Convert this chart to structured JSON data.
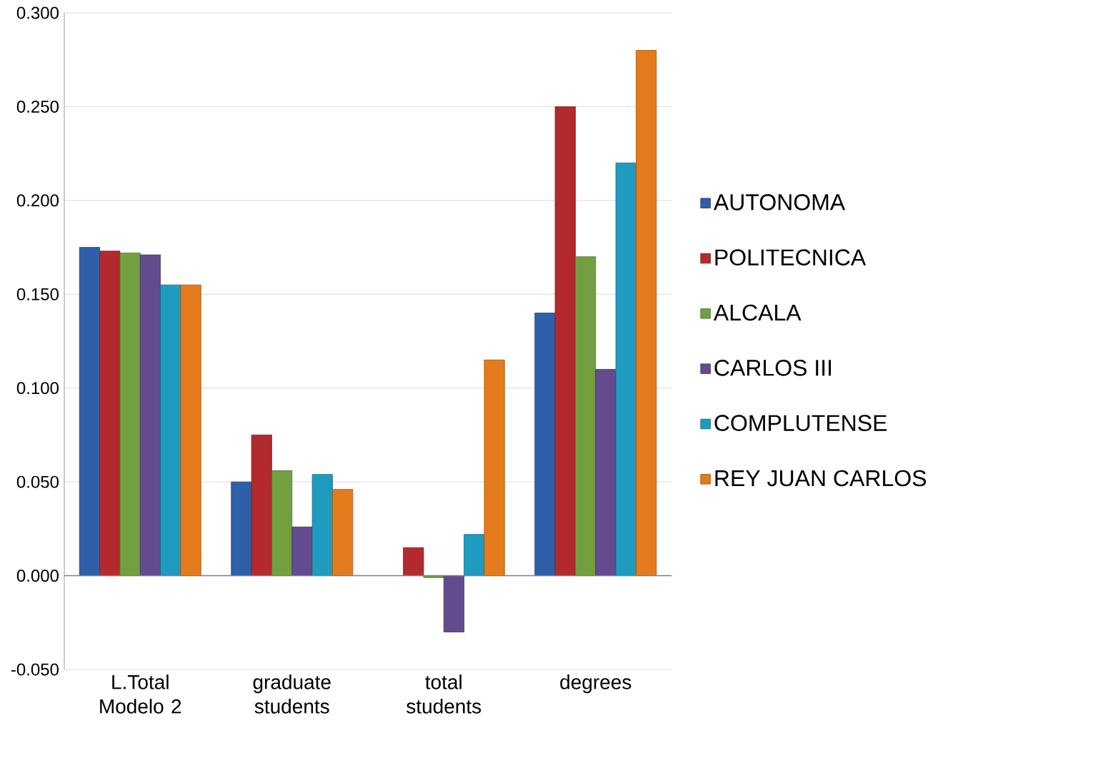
{
  "chart_data": {
    "type": "bar",
    "categories": [
      "L.Total Modelo 2",
      "graduate students",
      "total students",
      "degrees"
    ],
    "series": [
      {
        "name": "AUTONOMA",
        "color": "#2f5fa8",
        "values": [
          0.175,
          0.05,
          null,
          0.14
        ]
      },
      {
        "name": "POLITECNICA",
        "color": "#b22a2e",
        "values": [
          0.173,
          0.075,
          0.015,
          0.25
        ]
      },
      {
        "name": "ALCALA",
        "color": "#72a040",
        "values": [
          0.172,
          0.056,
          -0.001,
          0.17
        ]
      },
      {
        "name": "CARLOS III",
        "color": "#644a8e",
        "values": [
          0.171,
          0.026,
          -0.03,
          0.11
        ]
      },
      {
        "name": "COMPLUTENSE",
        "color": "#1f9bbf",
        "values": [
          0.155,
          0.054,
          0.022,
          0.22
        ]
      },
      {
        "name": "REY JUAN CARLOS",
        "color": "#e37b1c",
        "values": [
          0.155,
          0.046,
          0.115,
          0.28
        ]
      }
    ],
    "ylim": [
      -0.05,
      0.3
    ],
    "yticks": [
      {
        "value": -0.05,
        "label": "-0.050"
      },
      {
        "value": 0,
        "label": "0.000"
      },
      {
        "value": 0.05,
        "label": "0.050"
      },
      {
        "value": 0.1,
        "label": "0.100"
      },
      {
        "value": 0.15,
        "label": "0.150"
      },
      {
        "value": 0.2,
        "label": "0.200"
      },
      {
        "value": 0.25,
        "label": "0.250"
      },
      {
        "value": 0.3,
        "label": "0.300"
      }
    ],
    "grid": "y",
    "legend": "right"
  }
}
